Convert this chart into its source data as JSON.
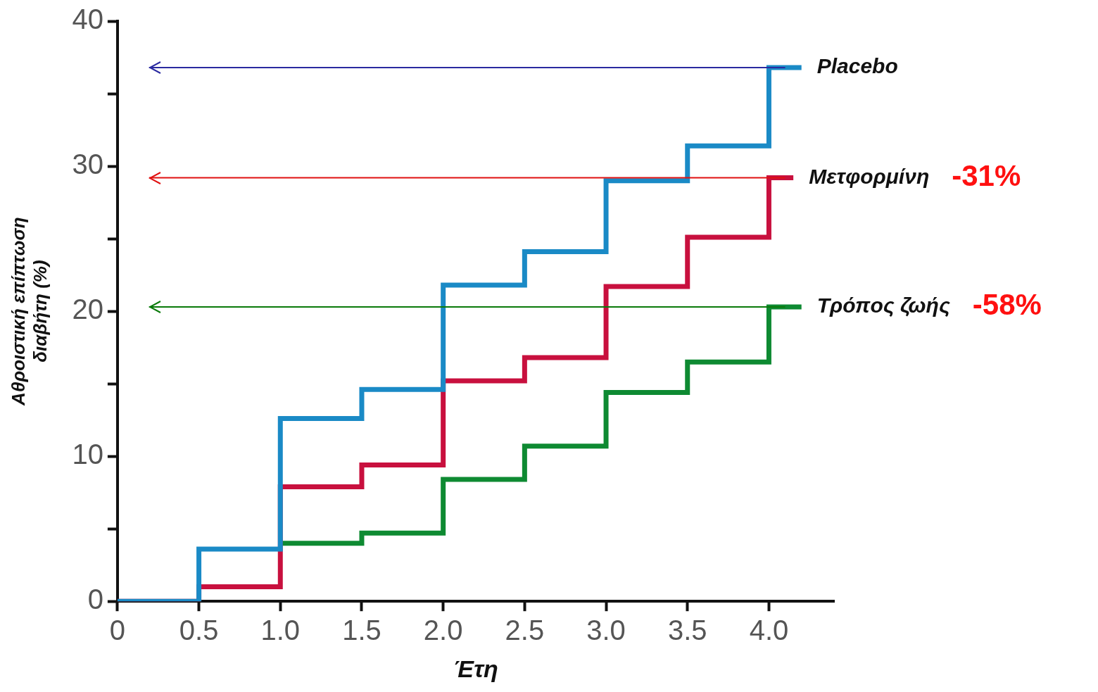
{
  "chart_data": {
    "type": "step",
    "xlabel": "Έτη",
    "ylabel": "Αθροιστική επίπτωση\nδιαβήτη (%)",
    "xlim": [
      0,
      4.4
    ],
    "ylim": [
      0,
      40
    ],
    "xticks": [
      0,
      0.5,
      {
        "value": 1,
        "label": "1.0"
      },
      1.5,
      {
        "value": 2,
        "label": "2.0"
      },
      2.5,
      {
        "value": 3,
        "label": "3.0"
      },
      3.5,
      {
        "value": 4,
        "label": "4.0"
      }
    ],
    "yticks": [
      0,
      {
        "value": 5,
        "label": null
      },
      10,
      {
        "value": 15,
        "label": null
      },
      20,
      {
        "value": 25,
        "label": null
      },
      30,
      {
        "value": 35,
        "label": null
      },
      40
    ],
    "grid": false,
    "legend": false,
    "marker": "none",
    "line_style": "solid",
    "series": [
      {
        "name": "Placebo",
        "color": "#1a8ac6",
        "x": [
          0,
          0.5,
          1.0,
          1.5,
          2.0,
          2.5,
          3.0,
          3.5,
          4.0,
          4.2
        ],
        "values": [
          0,
          3.6,
          12.6,
          14.6,
          21.8,
          24.1,
          29.0,
          31.4,
          36.8,
          36.8
        ]
      },
      {
        "name": "Μετφορμίνη",
        "color": "#c8103e",
        "x": [
          0,
          0.5,
          1.0,
          1.5,
          2.0,
          2.5,
          3.0,
          3.5,
          4.0,
          4.15
        ],
        "values": [
          0,
          1.0,
          7.9,
          9.4,
          15.2,
          16.8,
          21.7,
          25.1,
          29.2,
          29.2
        ]
      },
      {
        "name": "Τρόπος ζωής",
        "color": "#0e8a32",
        "x": [
          1.0,
          1.5,
          2.0,
          2.5,
          3.0,
          3.5,
          4.0,
          4.2
        ],
        "values": [
          4.0,
          4.7,
          8.4,
          10.7,
          14.4,
          16.5,
          20.3,
          20.3
        ]
      }
    ],
    "ref_lines": [
      {
        "axis": "y",
        "value": 36.8,
        "color": "#2a2aa0"
      },
      {
        "axis": "y",
        "value": 29.2,
        "color": "#e01010"
      },
      {
        "axis": "y",
        "value": 20.3,
        "color": "#0a7a0a"
      }
    ],
    "annotations": [
      "-31%",
      "-58%"
    ]
  }
}
